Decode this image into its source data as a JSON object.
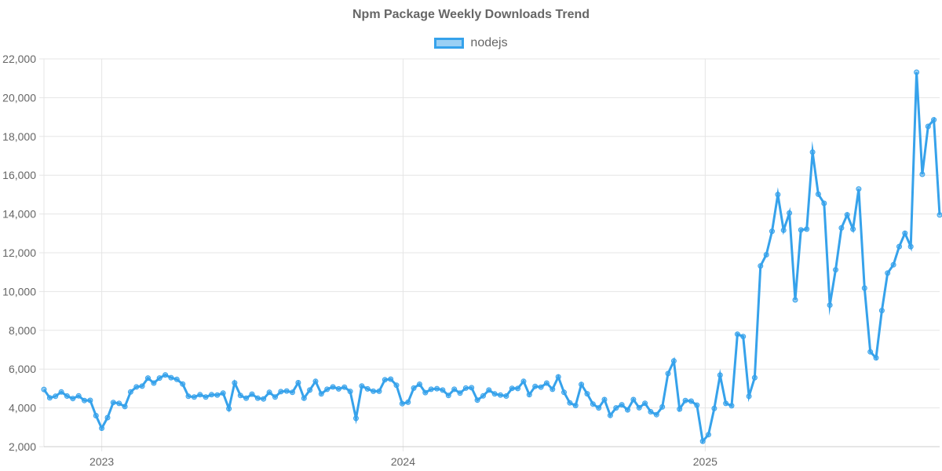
{
  "chart_data": {
    "type": "line",
    "title": "Npm Package Weekly Downloads Trend",
    "xlabel": "",
    "ylabel": "",
    "ylim": [
      2000,
      22000
    ],
    "y_ticks": [
      "2,000",
      "4,000",
      "6,000",
      "8,000",
      "10,000",
      "12,000",
      "14,000",
      "16,000",
      "18,000",
      "20,000",
      "22,000"
    ],
    "y_tick_values": [
      2000,
      4000,
      6000,
      8000,
      10000,
      12000,
      14000,
      16000,
      18000,
      20000,
      22000
    ],
    "x_ticks": [
      {
        "label": "2023",
        "date": "2023-01-01"
      },
      {
        "label": "2024",
        "date": "2024-01-01"
      },
      {
        "label": "2025",
        "date": "2025-01-01"
      }
    ],
    "xlim": [
      "2022-10-23",
      "2025-10-12"
    ],
    "grid": true,
    "legend_position": "top",
    "colors": {
      "line": "#36a2eb",
      "fill": "rgba(54,162,235,0.5)",
      "grid": "#e5e5e5",
      "text": "#666666"
    },
    "series": [
      {
        "name": "nodejs",
        "start_date": "2022-10-23",
        "interval_days": 7,
        "values": [
          4950,
          4520,
          4600,
          4820,
          4610,
          4480,
          4620,
          4380,
          4390,
          3600,
          2950,
          3500,
          4280,
          4230,
          4070,
          4820,
          5080,
          5120,
          5540,
          5280,
          5540,
          5700,
          5560,
          5470,
          5230,
          4600,
          4560,
          4680,
          4560,
          4680,
          4660,
          4760,
          3960,
          5290,
          4640,
          4500,
          4710,
          4500,
          4460,
          4800,
          4560,
          4840,
          4870,
          4800,
          5300,
          4500,
          4920,
          5370,
          4720,
          4960,
          5080,
          4980,
          5070,
          4850,
          3460,
          5130,
          4980,
          4860,
          4860,
          5450,
          5480,
          5170,
          4220,
          4290,
          5020,
          5220,
          4790,
          4960,
          4990,
          4920,
          4640,
          4960,
          4760,
          5020,
          5040,
          4400,
          4620,
          4920,
          4720,
          4660,
          4610,
          5010,
          5000,
          5370,
          4680,
          5110,
          5070,
          5280,
          4960,
          5600,
          4800,
          4260,
          4120,
          5210,
          4730,
          4200,
          4000,
          4430,
          3610,
          4000,
          4160,
          3900,
          4430,
          4010,
          4240,
          3800,
          3650,
          4050,
          5770,
          6420,
          3940,
          4380,
          4350,
          4140,
          2280,
          2620,
          3970,
          5690,
          4230,
          4110,
          7800,
          7680,
          4600,
          5560,
          11320,
          11900,
          13110,
          15000,
          13160,
          14050,
          9570,
          13180,
          13220,
          17190,
          15020,
          14550,
          9300,
          11120,
          13280,
          13960,
          13220,
          15290,
          10180,
          6890,
          6580,
          9020,
          10950,
          11380,
          12320,
          13010,
          12320,
          21310,
          16050,
          18520,
          18860,
          13950
        ]
      }
    ]
  }
}
